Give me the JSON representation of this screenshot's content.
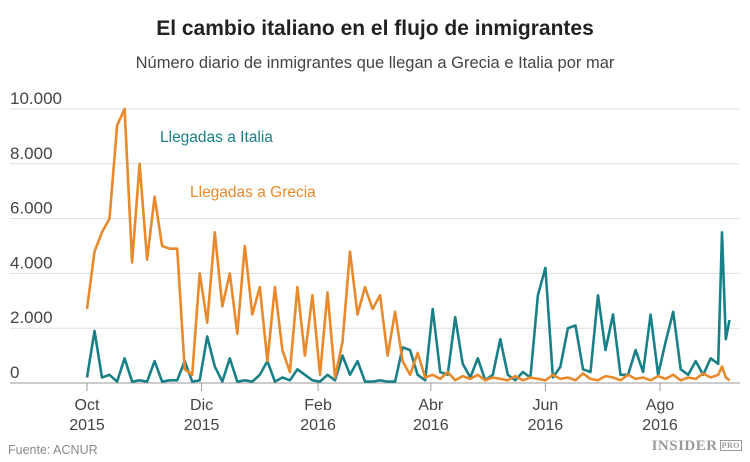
{
  "chart_data": {
    "type": "line",
    "title": "El cambio italiano en el flujo de inmigrantes",
    "subtitle": "Número diario de inmigrantes que llegan a Grecia e Italia por mar",
    "xlabel": "",
    "ylabel": "",
    "ylim": [
      0,
      10000
    ],
    "y_ticks": [
      "0",
      "2.000",
      "4.000",
      "6.000",
      "8.000",
      "10.000"
    ],
    "y_tick_values": [
      0,
      2000,
      4000,
      6000,
      8000,
      10000
    ],
    "x_ticks": [
      {
        "date": "2015-10-01",
        "line1": "Oct",
        "line2": "2015"
      },
      {
        "date": "2015-12-01",
        "line1": "Dic",
        "line2": "2015"
      },
      {
        "date": "2016-02-01",
        "line1": "Feb",
        "line2": "2016"
      },
      {
        "date": "2016-04-01",
        "line1": "Abr",
        "line2": "2016"
      },
      {
        "date": "2016-06-01",
        "line1": "Jun",
        "line2": "2016"
      },
      {
        "date": "2016-08-01",
        "line1": "Ago",
        "line2": "2016"
      }
    ],
    "grid": true,
    "legend": "inline-labels",
    "x": [
      "2015-10-01",
      "2015-10-05",
      "2015-10-09",
      "2015-10-13",
      "2015-10-17",
      "2015-10-21",
      "2015-10-25",
      "2015-10-29",
      "2015-11-02",
      "2015-11-06",
      "2015-11-10",
      "2015-11-14",
      "2015-11-18",
      "2015-11-22",
      "2015-11-26",
      "2015-11-30",
      "2015-12-04",
      "2015-12-08",
      "2015-12-12",
      "2015-12-16",
      "2015-12-20",
      "2015-12-24",
      "2015-12-28",
      "2016-01-01",
      "2016-01-05",
      "2016-01-09",
      "2016-01-13",
      "2016-01-17",
      "2016-01-21",
      "2016-01-25",
      "2016-01-29",
      "2016-02-02",
      "2016-02-06",
      "2016-02-10",
      "2016-02-14",
      "2016-02-18",
      "2016-02-22",
      "2016-02-26",
      "2016-03-01",
      "2016-03-05",
      "2016-03-09",
      "2016-03-13",
      "2016-03-17",
      "2016-03-21",
      "2016-03-25",
      "2016-03-29",
      "2016-04-02",
      "2016-04-06",
      "2016-04-10",
      "2016-04-14",
      "2016-04-18",
      "2016-04-22",
      "2016-04-26",
      "2016-04-30",
      "2016-05-04",
      "2016-05-08",
      "2016-05-12",
      "2016-05-16",
      "2016-05-20",
      "2016-05-24",
      "2016-05-28",
      "2016-06-01",
      "2016-06-05",
      "2016-06-09",
      "2016-06-13",
      "2016-06-17",
      "2016-06-21",
      "2016-06-25",
      "2016-06-29",
      "2016-07-03",
      "2016-07-07",
      "2016-07-11",
      "2016-07-15",
      "2016-07-19",
      "2016-07-23",
      "2016-07-27",
      "2016-07-31",
      "2016-08-04",
      "2016-08-08",
      "2016-08-12",
      "2016-08-16",
      "2016-08-20",
      "2016-08-24",
      "2016-08-28",
      "2016-09-01",
      "2016-09-03",
      "2016-09-05",
      "2016-09-07"
    ],
    "series": [
      {
        "name": "Llegadas a Italia",
        "color": "#1a8088",
        "values": [
          200,
          1900,
          200,
          300,
          50,
          900,
          50,
          100,
          50,
          800,
          50,
          100,
          100,
          800,
          50,
          100,
          1700,
          600,
          50,
          900,
          50,
          100,
          50,
          300,
          800,
          50,
          200,
          100,
          500,
          300,
          100,
          50,
          300,
          100,
          1000,
          300,
          800,
          50,
          50,
          100,
          50,
          50,
          1300,
          1200,
          300,
          100,
          2700,
          400,
          300,
          2400,
          700,
          200,
          900,
          100,
          300,
          1600,
          300,
          100,
          400,
          200,
          3200,
          4200,
          200,
          600,
          2000,
          2100,
          500,
          400,
          3200,
          1200,
          2500,
          300,
          300,
          1200,
          400,
          2500,
          300,
          1500,
          2600,
          500,
          300,
          800,
          300,
          900,
          700,
          5500,
          1600,
          2300
        ]
      },
      {
        "name": "Llegadas a Grecia",
        "color": "#e8892b",
        "values": [
          2700,
          4800,
          5500,
          6000,
          9400,
          10000,
          4400,
          8000,
          4500,
          6800,
          5000,
          4900,
          4900,
          500,
          300,
          4000,
          2200,
          5500,
          2800,
          4000,
          1800,
          5000,
          2500,
          3500,
          800,
          3500,
          1200,
          400,
          3500,
          1000,
          3200,
          300,
          3300,
          200,
          1500,
          4800,
          2500,
          3500,
          2700,
          3200,
          1000,
          2600,
          800,
          300,
          1100,
          200,
          300,
          150,
          400,
          100,
          250,
          150,
          300,
          100,
          200,
          150,
          100,
          250,
          100,
          200,
          150,
          100,
          300,
          150,
          200,
          100,
          350,
          150,
          100,
          250,
          200,
          100,
          300,
          150,
          200,
          100,
          250,
          150,
          300,
          100,
          200,
          150,
          350,
          200,
          300,
          600,
          200,
          100
        ]
      }
    ]
  },
  "footer": {
    "source": "Fuente: ACNUR",
    "logo": "INSIDER",
    "logo_suffix": "PRO"
  }
}
